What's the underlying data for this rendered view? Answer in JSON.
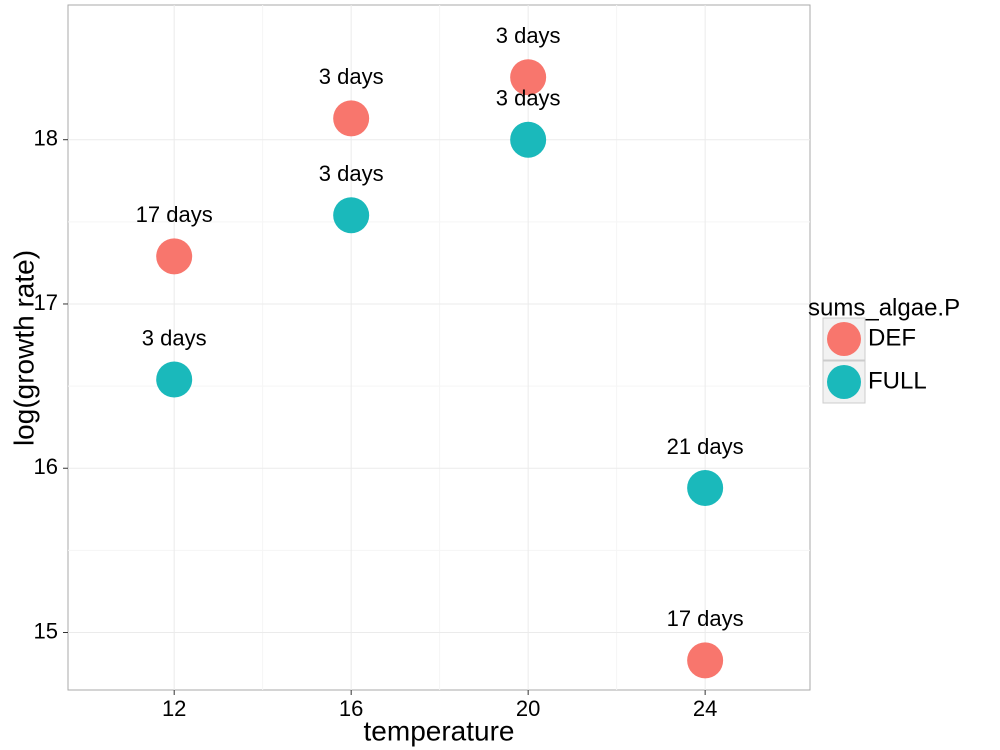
{
  "chart_data": {
    "type": "scatter",
    "x_label": "temperature",
    "y_label": "log(growth rate)",
    "legend_title": "sums_algae.P",
    "legend_position": "right",
    "x": [
      12,
      16,
      20,
      24
    ],
    "series": [
      {
        "name": "DEF",
        "color": "#F8766D",
        "values": [
          17.29,
          18.13,
          18.38,
          14.83
        ],
        "point_labels": [
          "17 days",
          "3 days",
          "3 days",
          "17 days"
        ]
      },
      {
        "name": "FULL",
        "color": "#1AB9BB",
        "values": [
          16.54,
          17.54,
          18.0,
          15.88
        ],
        "point_labels": [
          "3 days",
          "3 days",
          "3 days",
          "21 days"
        ]
      }
    ],
    "xlim": [
      9.6,
      26.37
    ],
    "ylim": [
      14.65,
      18.82
    ],
    "xticks": [
      12,
      16,
      20,
      24
    ],
    "yticks": [
      15,
      16,
      17,
      18
    ],
    "grid": true
  }
}
